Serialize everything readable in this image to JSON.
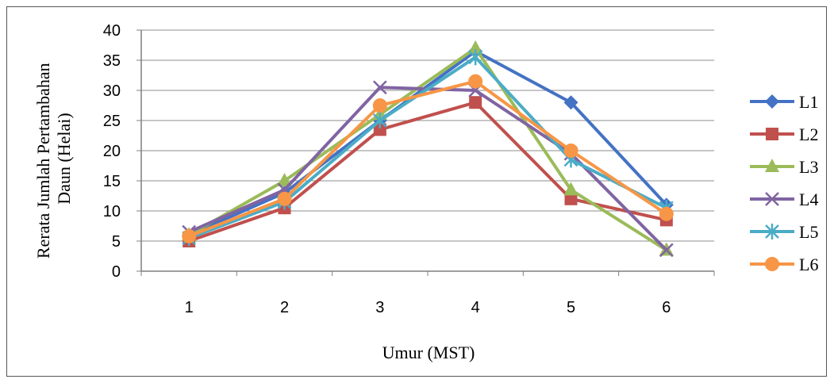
{
  "chart_data": {
    "type": "line",
    "xlabel": "Umur (MST)",
    "ylabel_lines": [
      "Rerata Jumlah Pertambahan",
      "Daun (Helai)"
    ],
    "x": [
      1,
      2,
      3,
      4,
      5,
      6
    ],
    "ylim": [
      0,
      40
    ],
    "yticks": [
      0,
      5,
      10,
      15,
      20,
      25,
      30,
      35,
      40
    ],
    "grid": true,
    "legend_position": "right",
    "series": [
      {
        "name": "L1",
        "color": "#4472C4",
        "marker": "diamond",
        "values": [
          6,
          13,
          25,
          36.5,
          28,
          11
        ]
      },
      {
        "name": "L2",
        "color": "#C0504D",
        "marker": "square",
        "values": [
          5,
          10.5,
          23.5,
          28,
          12,
          8.5
        ]
      },
      {
        "name": "L3",
        "color": "#9BBB59",
        "marker": "triangle",
        "values": [
          6,
          15,
          26,
          37,
          13.5,
          3.5
        ]
      },
      {
        "name": "L4",
        "color": "#8064A2",
        "marker": "x",
        "values": [
          6.5,
          13.5,
          30.5,
          30,
          19.5,
          3.5
        ]
      },
      {
        "name": "L5",
        "color": "#4BACC6",
        "marker": "star",
        "values": [
          5.5,
          11.5,
          25,
          35.5,
          18.5,
          10.5
        ]
      },
      {
        "name": "L6",
        "color": "#F79646",
        "marker": "circle",
        "values": [
          5.8,
          12,
          27.5,
          31.5,
          20,
          9.5
        ]
      }
    ]
  }
}
